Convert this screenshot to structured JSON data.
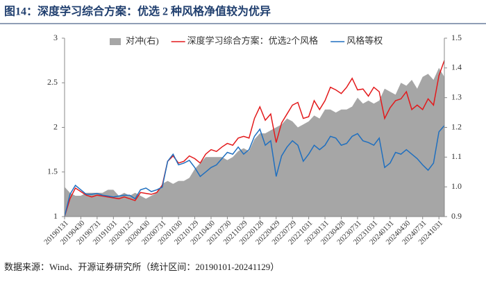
{
  "chart_data": {
    "type": "line",
    "title": "图14：深度学习综合方案：优选 2 种风格净值较为优异",
    "source": "数据来源：Wind、开源证券研究所（统计区间：20190101-20241129）",
    "categories": [
      "20190131",
      null,
      null,
      "20190430",
      null,
      null,
      "20190731",
      null,
      null,
      "20191031",
      null,
      null,
      "20200123",
      null,
      null,
      "20200430",
      null,
      null,
      "20200731",
      null,
      null,
      "20201030",
      null,
      null,
      "20210129",
      null,
      null,
      "20210430",
      null,
      null,
      "20210730",
      null,
      null,
      "20211029",
      null,
      null,
      "20220128",
      null,
      null,
      "20220429",
      null,
      null,
      "20220729",
      null,
      null,
      "20221031",
      null,
      null,
      "20230131",
      null,
      null,
      "20230428",
      null,
      null,
      "20230731",
      null,
      null,
      "20231031",
      null,
      null,
      "20240131",
      null,
      null,
      "20240430",
      null,
      null,
      "20240731",
      null,
      null,
      "20241031",
      null
    ],
    "ylim": [
      1,
      3
    ],
    "yticks": [
      1,
      1.5,
      2,
      2.5,
      3
    ],
    "y2lim": [
      0.9,
      1.5
    ],
    "y2ticks": [
      {
        "value": 0.9,
        "label": "0.9"
      },
      {
        "value": 1,
        "label": "1.0"
      },
      {
        "value": 1.1,
        "label": "1.1"
      },
      {
        "value": 1.2,
        "label": "1.2"
      },
      {
        "value": 1.3,
        "label": "1.3"
      },
      {
        "value": 1.4,
        "label": "1.4"
      },
      {
        "value": 1.5,
        "label": "1.5"
      }
    ],
    "legend": "top",
    "series": [
      {
        "name": "对冲(右)",
        "type": "area",
        "axis": "y2",
        "color": "#a6a6a6",
        "values": [
          1.0,
          0.98,
          0.97,
          0.97,
          0.98,
          0.98,
          0.98,
          0.98,
          0.99,
          0.99,
          0.97,
          0.98,
          0.97,
          0.98,
          0.97,
          0.96,
          0.97,
          0.98,
          1.01,
          1.02,
          1.01,
          1.02,
          1.02,
          1.03,
          1.06,
          1.08,
          1.1,
          1.1,
          1.1,
          1.1,
          1.09,
          1.1,
          1.12,
          1.13,
          1.12,
          1.16,
          1.18,
          1.18,
          1.19,
          1.2,
          1.21,
          1.23,
          1.22,
          1.2,
          1.21,
          1.22,
          1.24,
          1.23,
          1.26,
          1.26,
          1.25,
          1.26,
          1.26,
          1.27,
          1.3,
          1.28,
          1.29,
          1.28,
          1.29,
          1.33,
          1.32,
          1.31,
          1.35,
          1.34,
          1.36,
          1.33,
          1.37,
          1.38,
          1.36,
          1.4,
          1.37
        ]
      },
      {
        "name": "深度学习综合方案：优选2个风格",
        "type": "line",
        "color": "#e3191b",
        "values": [
          1.0,
          1.2,
          1.32,
          1.28,
          1.24,
          1.22,
          1.24,
          1.23,
          1.22,
          1.21,
          1.2,
          1.22,
          1.2,
          1.18,
          1.27,
          1.26,
          1.25,
          1.27,
          1.35,
          1.62,
          1.68,
          1.6,
          1.62,
          1.68,
          1.65,
          1.6,
          1.7,
          1.75,
          1.73,
          1.78,
          1.82,
          1.8,
          1.88,
          1.9,
          1.88,
          2.1,
          2.23,
          2.08,
          2.15,
          1.83,
          2.05,
          2.15,
          2.25,
          2.28,
          2.1,
          2.12,
          2.3,
          2.2,
          2.3,
          2.45,
          2.42,
          2.38,
          2.45,
          2.55,
          2.42,
          2.43,
          2.35,
          2.45,
          2.4,
          2.1,
          2.22,
          2.3,
          2.32,
          2.4,
          2.2,
          2.25,
          2.2,
          2.32,
          2.25,
          2.58,
          2.75
        ]
      },
      {
        "name": "风格等权",
        "type": "line",
        "color": "#1f6fbf",
        "values": [
          1.0,
          1.25,
          1.35,
          1.3,
          1.25,
          1.25,
          1.26,
          1.24,
          1.23,
          1.22,
          1.23,
          1.24,
          1.24,
          1.2,
          1.3,
          1.32,
          1.28,
          1.3,
          1.33,
          1.62,
          1.7,
          1.58,
          1.6,
          1.63,
          1.55,
          1.45,
          1.5,
          1.55,
          1.58,
          1.65,
          1.72,
          1.7,
          1.78,
          1.7,
          1.75,
          1.9,
          1.98,
          1.8,
          1.85,
          1.45,
          1.68,
          1.78,
          1.85,
          1.8,
          1.62,
          1.7,
          1.8,
          1.75,
          1.8,
          1.9,
          1.88,
          1.8,
          1.82,
          1.9,
          1.93,
          1.85,
          1.83,
          1.8,
          1.88,
          1.55,
          1.6,
          1.72,
          1.7,
          1.75,
          1.7,
          1.65,
          1.58,
          1.52,
          1.6,
          1.95,
          2.02
        ]
      }
    ]
  }
}
